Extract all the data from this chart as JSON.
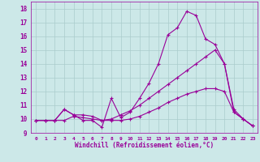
{
  "xlabel": "Windchill (Refroidissement éolien,°C)",
  "background_color": "#cce8e8",
  "line_color": "#990099",
  "grid_color": "#aacccc",
  "xlim": [
    -0.5,
    23.5
  ],
  "ylim": [
    9,
    18.5
  ],
  "yticks": [
    9,
    10,
    11,
    12,
    13,
    14,
    15,
    16,
    17,
    18
  ],
  "xticks": [
    0,
    1,
    2,
    3,
    4,
    5,
    6,
    7,
    8,
    9,
    10,
    11,
    12,
    13,
    14,
    15,
    16,
    17,
    18,
    19,
    20,
    21,
    22,
    23
  ],
  "series": [
    [
      9.9,
      9.9,
      9.9,
      10.7,
      10.3,
      9.9,
      9.9,
      9.4,
      11.5,
      10.1,
      10.5,
      11.5,
      12.6,
      14.0,
      16.1,
      16.6,
      17.8,
      17.5,
      15.8,
      15.4,
      14.0,
      10.7,
      10.0,
      9.5
    ],
    [
      9.9,
      9.9,
      9.9,
      10.7,
      10.3,
      10.3,
      10.2,
      9.9,
      10.0,
      10.3,
      10.6,
      11.0,
      11.5,
      12.0,
      12.5,
      13.0,
      13.5,
      14.0,
      14.5,
      15.0,
      14.0,
      10.5,
      10.0,
      9.5
    ],
    [
      9.9,
      9.9,
      9.9,
      9.9,
      10.2,
      10.1,
      10.0,
      9.9,
      9.9,
      9.9,
      10.0,
      10.2,
      10.5,
      10.8,
      11.2,
      11.5,
      11.8,
      12.0,
      12.2,
      12.2,
      12.0,
      10.5,
      10.0,
      9.5
    ]
  ]
}
